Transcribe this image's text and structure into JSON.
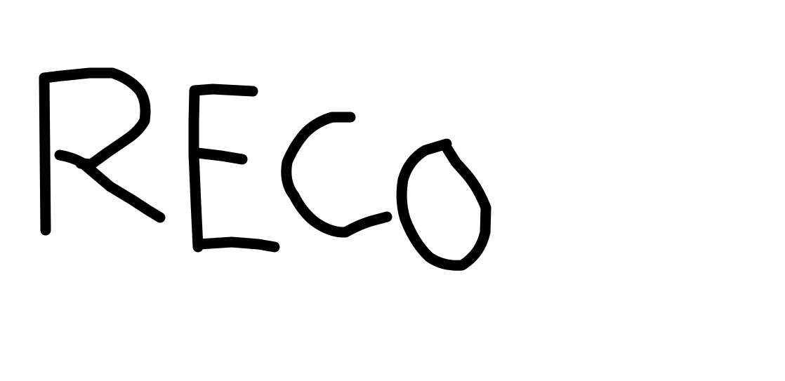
{
  "drawing": {
    "handwritten_text": "RECO",
    "letters": [
      "R",
      "E",
      "C",
      "O"
    ],
    "ink_color": "#000000",
    "background_color": "#ffffff"
  }
}
